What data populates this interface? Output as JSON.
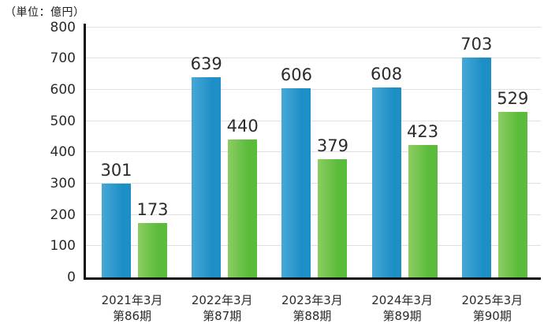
{
  "chart_data": {
    "type": "bar",
    "unit_label": "（単位：億円）",
    "categories": [
      {
        "line1": "2021年3月",
        "line2": "第86期"
      },
      {
        "line1": "2022年3月",
        "line2": "第87期"
      },
      {
        "line1": "2023年3月",
        "line2": "第88期"
      },
      {
        "line1": "2024年3月",
        "line2": "第89期"
      },
      {
        "line1": "2025年3月",
        "line2": "第90期"
      }
    ],
    "series": [
      {
        "name": "blue-series",
        "color": "#1e8fc6",
        "color_light": "#47a7d6",
        "values": [
          301,
          639,
          606,
          608,
          703
        ]
      },
      {
        "name": "green-series",
        "color": "#5bbb3a",
        "color_light": "#8ccd63",
        "values": [
          173,
          440,
          379,
          423,
          529
        ]
      }
    ],
    "ylim": [
      0,
      800
    ],
    "ytick_step": 100,
    "yticks": [
      0,
      100,
      200,
      300,
      400,
      500,
      600,
      700,
      800
    ],
    "grid": true,
    "legend": "none",
    "axis_color": "#111111",
    "grid_color": "#e0e0e0",
    "label_color": "#2b2b2b"
  }
}
